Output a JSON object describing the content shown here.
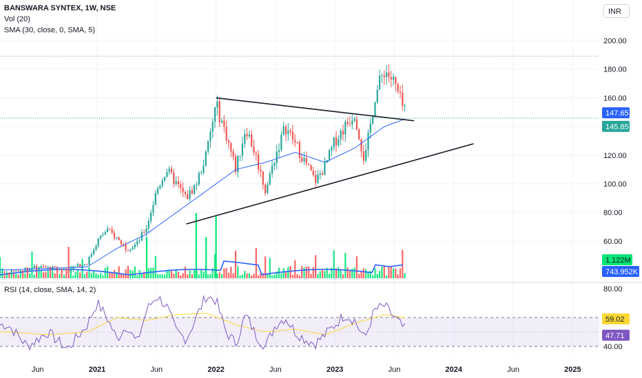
{
  "header": {
    "title": "BANSWARA SYNTEX, 1W, NSE",
    "vol_label": "Vol (20)",
    "sma_label": "SMA (30, close, 0, SMA, 5)",
    "currency": "INR"
  },
  "rsi_panel": {
    "label": "RSI (14, close, SMA, 14, 2)"
  },
  "colors": {
    "up": "#26a69a",
    "down": "#ef5350",
    "sma": "#2962ff",
    "rsi": "#7e57c2",
    "rsi_ma": "#fdd835",
    "vol_up": "#00e676",
    "vol_down": "#ff5252",
    "trendline": "#131722"
  },
  "chart_data": [
    {
      "type": "candlestick",
      "title": "BANSWARA SYNTEX, 1W, NSE",
      "ylim": [
        0,
        210
      ],
      "yticks": [
        "200.00",
        "180.00",
        "160.00",
        "140.00",
        "120.00",
        "100.00",
        "80.00",
        "60.00"
      ],
      "x_labels": [
        "Jun",
        "2021",
        "Jun",
        "2022",
        "Jun",
        "2023",
        "Jun",
        "2024",
        "Jun",
        "2025"
      ],
      "price_badges": [
        {
          "value": "147.65",
          "color": "#2962ff"
        },
        {
          "value": "145.85",
          "color": "#26a69a"
        }
      ],
      "horizontal_levels": [
        189,
        145.85
      ],
      "trendlines": [
        {
          "from": [
            "2022-01",
            160
          ],
          "to": [
            "2023-09",
            144
          ]
        },
        {
          "from": [
            "2021-10",
            72
          ],
          "to": [
            "2024-03",
            128
          ]
        }
      ],
      "close_path_keypoints": [
        [
          "2020-04",
          38
        ],
        [
          "2020-07",
          42
        ],
        [
          "2020-10",
          40
        ],
        [
          "2020-12",
          45
        ],
        [
          "2021-01",
          60
        ],
        [
          "2021-02",
          68
        ],
        [
          "2021-03",
          62
        ],
        [
          "2021-04",
          55
        ],
        [
          "2021-05",
          58
        ],
        [
          "2021-06",
          70
        ],
        [
          "2021-07",
          95
        ],
        [
          "2021-08",
          110
        ],
        [
          "2021-09",
          100
        ],
        [
          "2021-10",
          90
        ],
        [
          "2021-11",
          100
        ],
        [
          "2021-12",
          120
        ],
        [
          "2022-01",
          155
        ],
        [
          "2022-02",
          135
        ],
        [
          "2022-03",
          110
        ],
        [
          "2022-04",
          140
        ],
        [
          "2022-05",
          120
        ],
        [
          "2022-06",
          95
        ],
        [
          "2022-07",
          120
        ],
        [
          "2022-08",
          140
        ],
        [
          "2022-09",
          128
        ],
        [
          "2022-10",
          115
        ],
        [
          "2022-11",
          102
        ],
        [
          "2022-12",
          112
        ],
        [
          "2023-01",
          130
        ],
        [
          "2023-02",
          140
        ],
        [
          "2023-03",
          150
        ],
        [
          "2023-04",
          115
        ],
        [
          "2023-05",
          160
        ],
        [
          "2023-06",
          180
        ],
        [
          "2023-07",
          170
        ],
        [
          "2023-08",
          150
        ],
        [
          "2023-09",
          145.85
        ]
      ],
      "sma_path_keypoints": [
        [
          "2020-04",
          40
        ],
        [
          "2020-12",
          42
        ],
        [
          "2021-03",
          55
        ],
        [
          "2021-06",
          65
        ],
        [
          "2021-09",
          80
        ],
        [
          "2021-12",
          95
        ],
        [
          "2022-03",
          110
        ],
        [
          "2022-06",
          115
        ],
        [
          "2022-09",
          122
        ],
        [
          "2022-12",
          115
        ],
        [
          "2023-03",
          125
        ],
        [
          "2023-06",
          140
        ],
        [
          "2023-09",
          147.65
        ]
      ]
    },
    {
      "type": "bar",
      "title": "Vol (20)",
      "badges": [
        {
          "value": "1.122M",
          "color": "#00e676"
        },
        {
          "value": "743.952K",
          "color": "#2962ff"
        }
      ]
    },
    {
      "type": "line",
      "title": "RSI (14, close, SMA, 14, 2)",
      "ylim": [
        30,
        85
      ],
      "yticks": [
        "80.00",
        "40.00"
      ],
      "band": [
        40,
        60
      ],
      "badges": [
        {
          "value": "59.02",
          "color": "#fdd835",
          "text_color": "#131722"
        },
        {
          "value": "47.71",
          "color": "#7e57c2",
          "text_color": "#ffffff"
        }
      ],
      "rsi_keypoints": [
        [
          "2020-04",
          55
        ],
        [
          "2020-06",
          40
        ],
        [
          "2020-08",
          50
        ],
        [
          "2020-10",
          38
        ],
        [
          "2020-12",
          55
        ],
        [
          "2021-01",
          70
        ],
        [
          "2021-02",
          60
        ],
        [
          "2021-03",
          45
        ],
        [
          "2021-04",
          55
        ],
        [
          "2021-05",
          42
        ],
        [
          "2021-06",
          65
        ],
        [
          "2021-07",
          75
        ],
        [
          "2021-08",
          68
        ],
        [
          "2021-09",
          50
        ],
        [
          "2021-10",
          45
        ],
        [
          "2021-11",
          60
        ],
        [
          "2021-12",
          75
        ],
        [
          "2022-01",
          72
        ],
        [
          "2022-02",
          50
        ],
        [
          "2022-03",
          42
        ],
        [
          "2022-04",
          62
        ],
        [
          "2022-05",
          48
        ],
        [
          "2022-06",
          40
        ],
        [
          "2022-07",
          55
        ],
        [
          "2022-08",
          60
        ],
        [
          "2022-09",
          50
        ],
        [
          "2022-10",
          45
        ],
        [
          "2022-11",
          42
        ],
        [
          "2022-12",
          48
        ],
        [
          "2023-01",
          55
        ],
        [
          "2023-02",
          62
        ],
        [
          "2023-03",
          58
        ],
        [
          "2023-04",
          45
        ],
        [
          "2023-05",
          65
        ],
        [
          "2023-06",
          68
        ],
        [
          "2023-07",
          60
        ],
        [
          "2023-08",
          52
        ],
        [
          "2023-09",
          47.71
        ]
      ],
      "rsi_ma_keypoints": [
        [
          "2020-04",
          50
        ],
        [
          "2020-08",
          48
        ],
        [
          "2020-12",
          50
        ],
        [
          "2021-03",
          60
        ],
        [
          "2021-06",
          58
        ],
        [
          "2021-09",
          62
        ],
        [
          "2021-12",
          63
        ],
        [
          "2022-03",
          55
        ],
        [
          "2022-06",
          50
        ],
        [
          "2022-09",
          52
        ],
        [
          "2022-12",
          48
        ],
        [
          "2023-03",
          56
        ],
        [
          "2023-06",
          62
        ],
        [
          "2023-09",
          59.02
        ]
      ]
    }
  ]
}
